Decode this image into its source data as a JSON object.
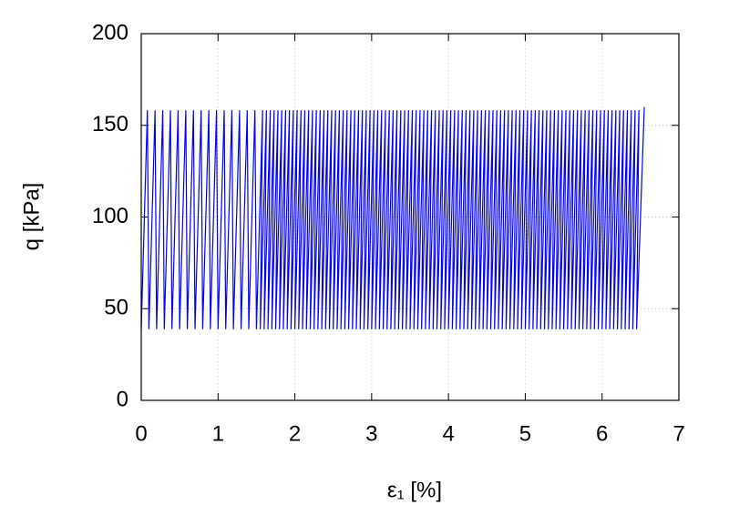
{
  "chart_data": {
    "type": "line",
    "xlabel": "ε₁ [%]",
    "ylabel": "q [kPa]",
    "xlim": [
      0,
      7
    ],
    "ylim": [
      0,
      200
    ],
    "xticks": [
      0,
      1,
      2,
      3,
      4,
      5,
      6,
      7
    ],
    "yticks": [
      0,
      50,
      100,
      150,
      200
    ],
    "grid": true,
    "x": [
      0,
      0.08,
      0.1,
      0.18,
      0.2,
      0.28,
      0.3,
      0.38,
      0.4,
      0.48,
      0.5,
      0.58,
      0.6,
      0.68,
      0.7,
      0.78,
      0.8,
      0.88,
      0.9,
      0.98,
      1,
      1.08,
      1.1,
      1.18,
      1.2,
      1.28,
      1.3,
      1.38,
      1.4,
      1.48,
      1.5,
      1.58,
      1.55,
      1.63,
      1.6,
      1.68,
      1.65,
      1.73,
      1.7,
      1.78,
      1.75,
      1.83,
      1.8,
      1.88,
      1.85,
      1.93,
      1.9,
      1.98,
      1.95,
      2.03,
      2,
      2.08,
      2.05,
      2.13,
      2.1,
      2.18,
      2.15,
      2.23,
      2.2,
      2.28,
      2.25,
      2.33,
      2.3,
      2.38,
      2.35,
      2.43,
      2.4,
      2.48,
      2.45,
      2.53,
      2.5,
      2.58,
      2.55,
      2.63,
      2.6,
      2.68,
      2.65,
      2.73,
      2.7,
      2.78,
      2.75,
      2.83,
      2.8,
      2.88,
      2.85,
      2.93,
      2.9,
      2.98,
      2.95,
      3.03,
      3,
      3.08,
      3.05,
      3.13,
      3.1,
      3.18,
      3.15,
      3.23,
      3.2,
      3.28,
      3.25,
      3.33,
      3.3,
      3.38,
      3.35,
      3.43,
      3.4,
      3.48,
      3.45,
      3.53,
      3.5,
      3.58,
      3.55,
      3.63,
      3.6,
      3.68,
      3.65,
      3.73,
      3.7,
      3.78,
      3.75,
      3.83,
      3.8,
      3.88,
      3.85,
      3.93,
      3.9,
      3.98,
      3.95,
      4.03,
      4,
      4.08,
      4.05,
      4.13,
      4.1,
      4.18,
      4.15,
      4.23,
      4.2,
      4.28,
      4.25,
      4.33,
      4.3,
      4.38,
      4.35,
      4.43,
      4.4,
      4.48,
      4.45,
      4.53,
      4.5,
      4.58,
      4.55,
      4.63,
      4.6,
      4.68,
      4.65,
      4.73,
      4.7,
      4.78,
      4.75,
      4.83,
      4.8,
      4.88,
      4.85,
      4.93,
      4.9,
      4.98,
      4.95,
      5.03,
      5,
      5.08,
      5.05,
      5.13,
      5.1,
      5.18,
      5.15,
      5.23,
      5.2,
      5.28,
      5.25,
      5.33,
      5.3,
      5.38,
      5.35,
      5.43,
      5.4,
      5.48,
      5.45,
      5.53,
      5.5,
      5.58,
      5.55,
      5.63,
      5.6,
      5.68,
      5.65,
      5.73,
      5.7,
      5.78,
      5.75,
      5.83,
      5.8,
      5.88,
      5.85,
      5.93,
      5.9,
      5.98,
      5.95,
      6.03,
      6,
      6.08,
      6.05,
      6.13,
      6.1,
      6.18,
      6.15,
      6.23,
      6.2,
      6.28,
      6.25,
      6.33,
      6.3,
      6.38,
      6.35,
      6.43,
      6.4,
      6.48,
      6.45,
      6.55
    ],
    "series": [
      {
        "color": "#0000ff",
        "values": [
          39,
          158,
          39,
          158,
          39,
          158,
          39,
          158,
          39,
          158,
          39,
          158,
          39,
          158,
          39,
          158,
          39,
          158,
          39,
          158,
          39,
          158,
          39,
          158,
          39,
          158,
          39,
          158,
          39,
          158,
          39,
          158,
          39,
          158,
          39,
          158,
          39,
          158,
          39,
          158,
          39,
          158,
          39,
          158,
          39,
          158,
          39,
          158,
          39,
          158,
          39,
          158,
          39,
          158,
          39,
          158,
          39,
          158,
          39,
          158,
          39,
          158,
          39,
          158,
          39,
          158,
          39,
          158,
          39,
          158,
          39,
          158,
          39,
          158,
          39,
          158,
          39,
          158,
          39,
          158,
          39,
          158,
          39,
          158,
          39,
          158,
          39,
          158,
          39,
          158,
          39,
          158,
          39,
          158,
          39,
          158,
          39,
          158,
          39,
          158,
          39,
          158,
          39,
          158,
          39,
          158,
          39,
          158,
          39,
          158,
          39,
          158,
          39,
          158,
          39,
          158,
          39,
          158,
          39,
          158,
          39,
          158,
          39,
          158,
          39,
          158,
          39,
          158,
          39,
          158,
          39,
          158,
          39,
          158,
          39,
          158,
          39,
          158,
          39,
          158,
          39,
          158,
          39,
          158,
          39,
          158,
          39,
          158,
          39,
          158,
          39,
          158,
          39,
          158,
          39,
          158,
          39,
          158,
          39,
          158,
          39,
          158,
          39,
          158,
          39,
          158,
          39,
          158,
          39,
          158,
          39,
          158,
          39,
          158,
          39,
          158,
          39,
          158,
          39,
          158,
          39,
          158,
          39,
          158,
          39,
          158,
          39,
          158,
          39,
          158,
          39,
          158,
          39,
          158,
          39,
          158,
          39,
          158,
          39,
          158,
          39,
          158,
          39,
          158,
          39,
          158,
          39,
          158,
          39,
          158,
          39,
          158,
          39,
          158,
          39,
          158,
          39,
          158,
          39,
          158,
          39,
          158,
          39,
          158,
          39,
          158,
          39,
          158,
          39,
          160
        ]
      }
    ]
  }
}
